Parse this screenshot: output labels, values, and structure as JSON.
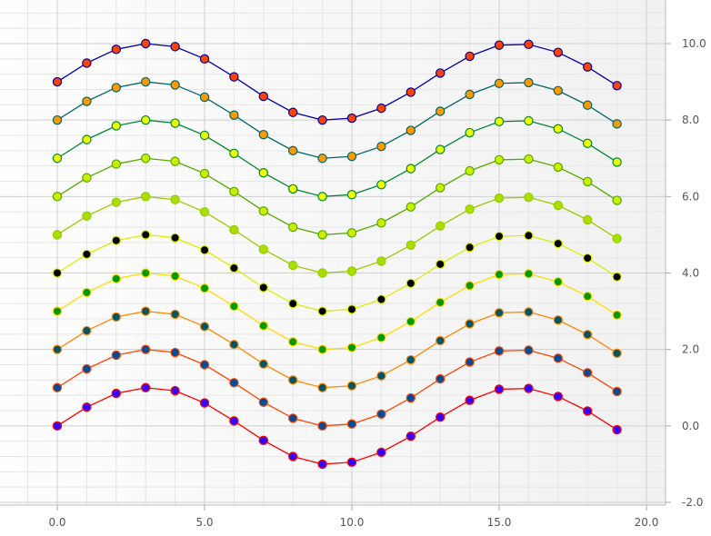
{
  "chart_data": {
    "type": "line",
    "title": "",
    "xlabel": "",
    "ylabel": "",
    "xlim": [
      -1,
      21
    ],
    "ylim": [
      -2,
      11
    ],
    "grid": true,
    "y_axis_side": "right",
    "x_ticks": [
      {
        "value": 0,
        "label": "0.0"
      },
      {
        "value": 5,
        "label": "5.0"
      },
      {
        "value": 10,
        "label": "10.0"
      },
      {
        "value": 15,
        "label": "15.0"
      },
      {
        "value": 20,
        "label": "20.0"
      }
    ],
    "y_ticks": [
      {
        "value": -2,
        "label": "-2.0"
      },
      {
        "value": 0,
        "label": "0.0"
      },
      {
        "value": 2,
        "label": "2.0"
      },
      {
        "value": 4,
        "label": "4.0"
      },
      {
        "value": 6,
        "label": "6.0"
      },
      {
        "value": 8,
        "label": "8.0"
      },
      {
        "value": 10,
        "label": "10.0"
      }
    ],
    "x": [
      0,
      1,
      2,
      3,
      4,
      5,
      6,
      7,
      8,
      9,
      10,
      11,
      12,
      13,
      14,
      15,
      16,
      17,
      18,
      19
    ],
    "series": [
      {
        "line_color": "#ff0000",
        "marker_fill": "#3300ff",
        "values": [
          0,
          0.49,
          0.85,
          1.0,
          0.92,
          0.6,
          0.13,
          -0.38,
          -0.8,
          -1.0,
          -0.95,
          -0.69,
          -0.27,
          0.23,
          0.67,
          0.96,
          0.98,
          0.77,
          0.39,
          -0.1
        ]
      },
      {
        "line_color": "#ff4400",
        "marker_fill": "#004c99",
        "values": [
          1,
          1.49,
          1.85,
          2.0,
          1.92,
          1.6,
          1.13,
          0.62,
          0.2,
          0.0,
          0.05,
          0.31,
          0.73,
          1.23,
          1.67,
          1.96,
          1.98,
          1.77,
          1.39,
          0.9
        ]
      },
      {
        "line_color": "#ff8800",
        "marker_fill": "#005566",
        "values": [
          2,
          2.49,
          2.85,
          3.0,
          2.92,
          2.6,
          2.13,
          1.62,
          1.2,
          1.0,
          1.05,
          1.31,
          1.73,
          2.23,
          2.67,
          2.96,
          2.98,
          2.77,
          2.39,
          1.9
        ]
      },
      {
        "line_color": "#ffdd00",
        "marker_fill": "#009900",
        "values": [
          3,
          3.49,
          3.85,
          4.0,
          3.92,
          3.6,
          3.13,
          2.62,
          2.2,
          2.0,
          2.05,
          2.31,
          2.73,
          3.23,
          3.67,
          3.96,
          3.98,
          3.77,
          3.39,
          2.9
        ]
      },
      {
        "line_color": "#ddee00",
        "marker_fill": "#000000",
        "values": [
          4,
          4.49,
          4.85,
          5.0,
          4.92,
          4.6,
          4.13,
          3.62,
          3.2,
          3.0,
          3.05,
          3.31,
          3.73,
          4.23,
          4.67,
          4.96,
          4.98,
          4.77,
          4.39,
          3.9
        ]
      },
      {
        "line_color": "#99cc00",
        "marker_fill": "#aadd00",
        "values": [
          5,
          5.49,
          5.85,
          6.0,
          5.92,
          5.6,
          5.13,
          4.62,
          4.2,
          4.0,
          4.05,
          4.31,
          4.73,
          5.23,
          5.67,
          5.96,
          5.98,
          5.77,
          5.39,
          4.9
        ]
      },
      {
        "line_color": "#55aa00",
        "marker_fill": "#ccee00",
        "values": [
          6,
          6.49,
          6.85,
          7.0,
          6.92,
          6.6,
          6.13,
          5.62,
          5.2,
          5.0,
          5.05,
          5.31,
          5.73,
          6.23,
          6.67,
          6.96,
          6.98,
          6.77,
          6.39,
          5.9
        ]
      },
      {
        "line_color": "#008833",
        "marker_fill": "#eeff00",
        "values": [
          7,
          7.49,
          7.85,
          8.0,
          7.92,
          7.6,
          7.13,
          6.62,
          6.2,
          6.0,
          6.05,
          6.31,
          6.73,
          7.23,
          7.67,
          7.96,
          7.98,
          7.77,
          7.39,
          6.9
        ]
      },
      {
        "line_color": "#006666",
        "marker_fill": "#ff9900",
        "values": [
          8,
          8.49,
          8.85,
          9.0,
          8.92,
          8.6,
          8.13,
          7.62,
          7.2,
          7.0,
          7.05,
          7.31,
          7.73,
          8.23,
          8.67,
          8.96,
          8.98,
          8.77,
          8.39,
          7.9
        ]
      },
      {
        "line_color": "#0000aa",
        "marker_fill": "#ff4400",
        "values": [
          9,
          9.49,
          9.85,
          10.0,
          9.92,
          9.6,
          9.13,
          8.62,
          8.2,
          8.0,
          8.05,
          8.31,
          8.73,
          9.23,
          9.67,
          9.96,
          9.98,
          9.77,
          9.39,
          8.9
        ]
      }
    ]
  }
}
